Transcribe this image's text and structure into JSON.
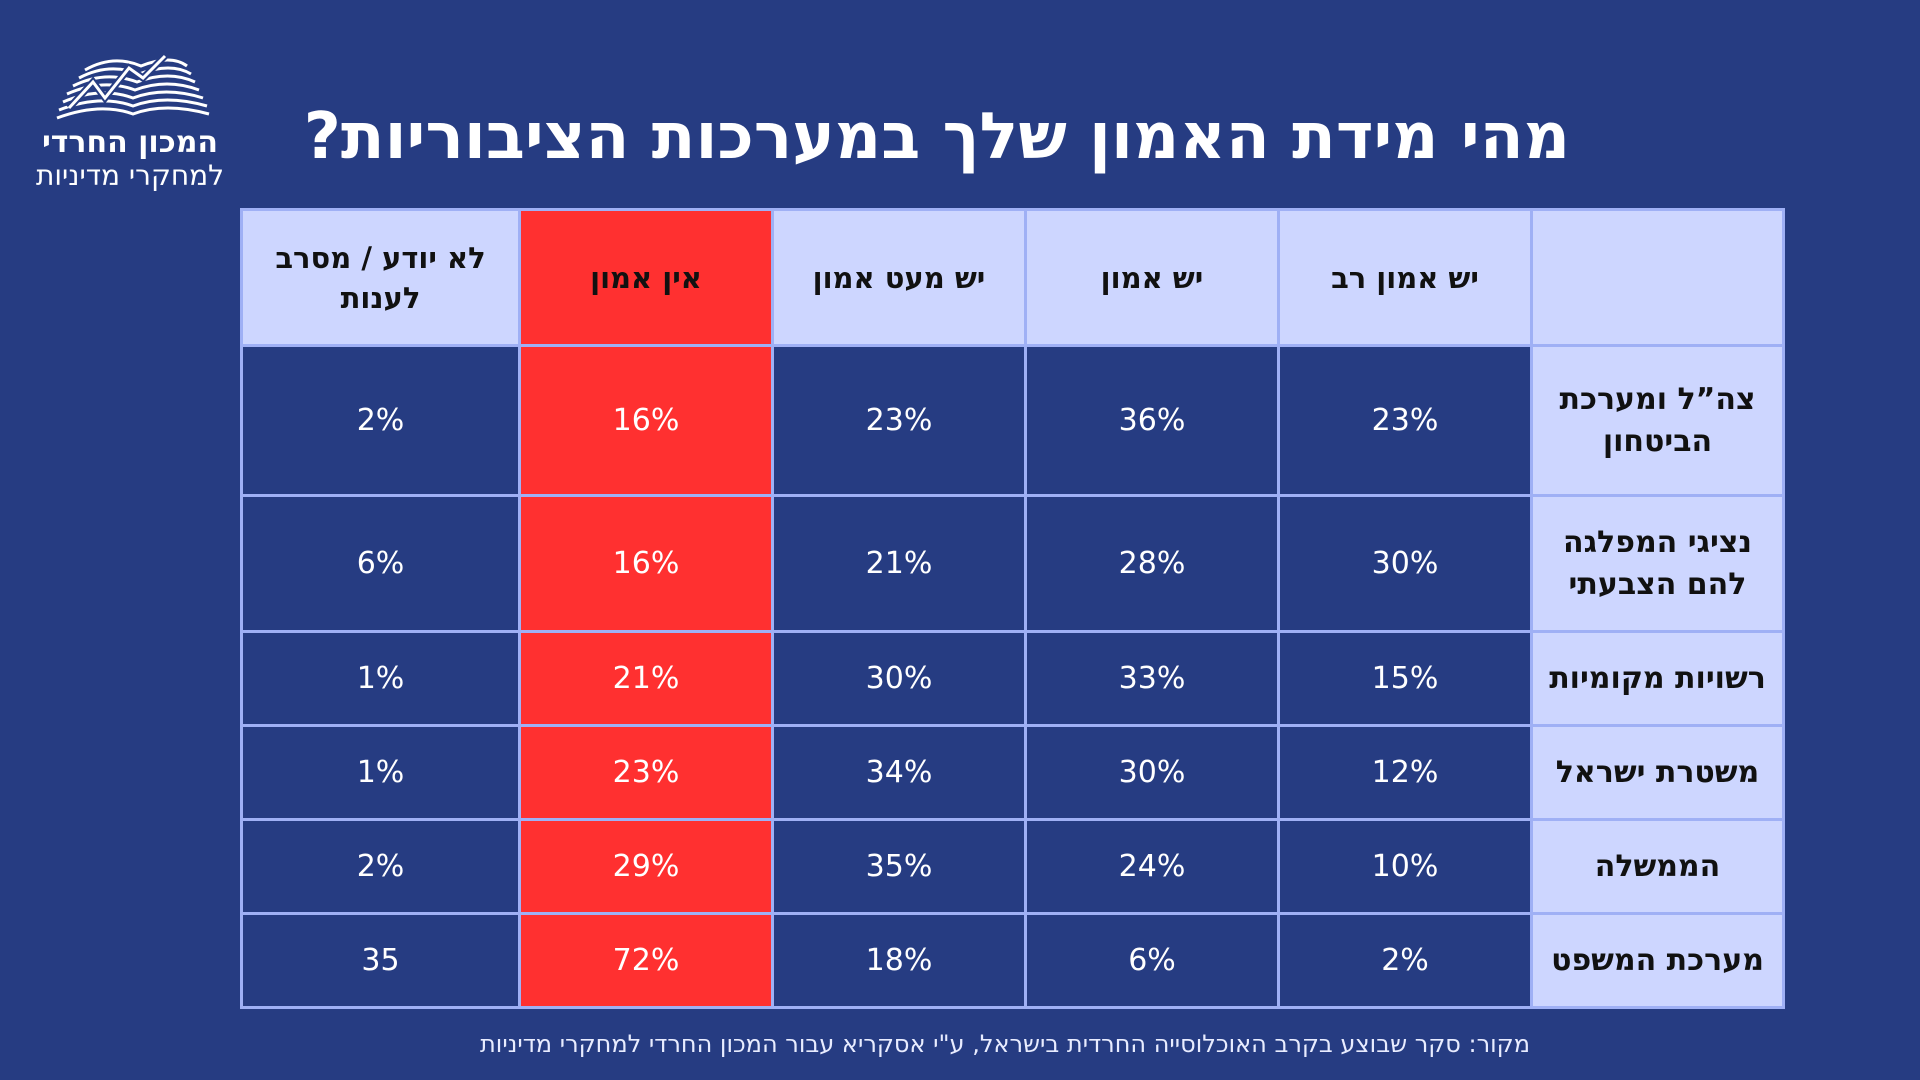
{
  "logo": {
    "line1": "המכון החרדי",
    "line2": "למחקרי מדיניות"
  },
  "title": "מהי מידת האמון שלך במערכות הציבוריות?",
  "chart_data": {
    "type": "table",
    "columns": [
      "",
      "יש אמון רב",
      "יש אמון",
      "יש מעט אמון",
      "אין אמון",
      "לא יודע / מסרב לענות"
    ],
    "rows": [
      {
        "label": "צה”ל ומערכת הביטחון",
        "values": [
          "23%",
          "36%",
          "23%",
          "16%",
          "2%"
        ]
      },
      {
        "label": "נציגי המפלגה להם הצבעתי",
        "values": [
          "30%",
          "28%",
          "21%",
          "16%",
          "6%"
        ]
      },
      {
        "label": "רשויות מקומיות",
        "values": [
          "15%",
          "33%",
          "30%",
          "21%",
          "1%"
        ]
      },
      {
        "label": "משטרת ישראל",
        "values": [
          "12%",
          "30%",
          "34%",
          "23%",
          "1%"
        ]
      },
      {
        "label": "הממשלה",
        "values": [
          "10%",
          "24%",
          "35%",
          "29%",
          "2%"
        ]
      },
      {
        "label": "מערכת המשפט",
        "values": [
          "2%",
          "6%",
          "18%",
          "72%",
          "35"
        ]
      }
    ],
    "highlight_column": "אין אמון",
    "colors": {
      "background": "#263c82",
      "header": "#cdd6ff",
      "highlight": "#ff3030",
      "border": "#9fb0f5"
    }
  },
  "source": "מקור: סקר שבוצע בקרב האוכלוסייה החרדית בישראל, ע\"י אסקריא עבור המכון החרדי למחקרי מדיניות"
}
